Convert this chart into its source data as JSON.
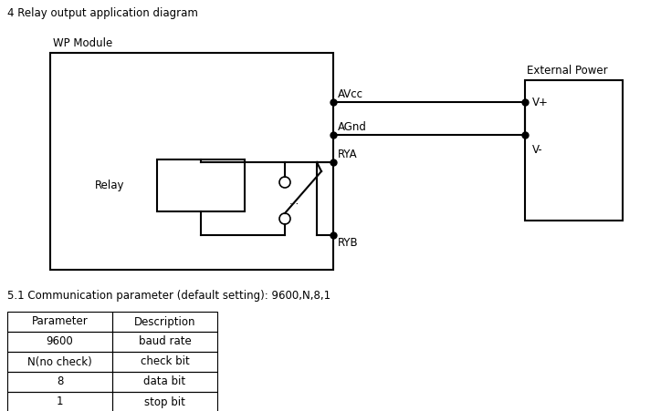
{
  "title": "4 Relay output application diagram",
  "wp_module_label": "WP Module",
  "external_power_label": "External Power",
  "relay_label": "Relay",
  "avcc_label": "AVcc",
  "agnd_label": "AGnd",
  "rya_label": "RYA",
  "ryb_label": "RYB",
  "vplus_label": "V+",
  "vminus_label": "V-",
  "comm_title": "5.1 Communication parameter (default setting): 9600,N,8,1",
  "table_headers": [
    "Parameter",
    "Description"
  ],
  "table_rows": [
    [
      "9600",
      "baud rate"
    ],
    [
      "N(no check)",
      "check bit"
    ],
    [
      "8",
      "data bit"
    ],
    [
      "1",
      "stop bit"
    ]
  ],
  "bg_color": "#ffffff",
  "line_color": "#000000",
  "font_size": 8.5
}
